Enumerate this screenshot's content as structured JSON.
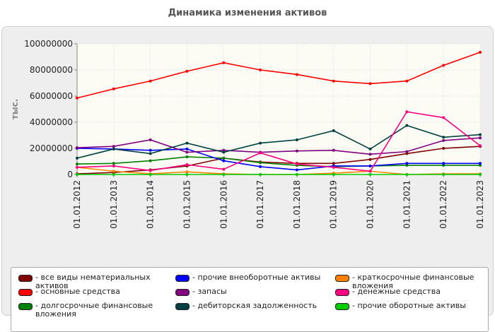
{
  "title": "Динамика изменения активов",
  "chart_data": {
    "type": "line",
    "ylabel": "тыс.",
    "ylim": [
      0,
      100000000
    ],
    "yticks": [
      "0",
      "20000000",
      "40000000",
      "60000000",
      "80000000",
      "100000000"
    ],
    "x": [
      "01.01.2012",
      "01.01.2013",
      "01.01.2014",
      "01.01.2015",
      "01.01.2016",
      "01.01.2017",
      "01.01.2018",
      "01.01.2019",
      "01.01.2020",
      "01.01.2021",
      "01.01.2022",
      "01.01.2023"
    ],
    "series": [
      {
        "name": "- все виды нематериальных активов",
        "color": "#800000",
        "values": [
          500000,
          1500000,
          3500000,
          6500000,
          12500000,
          9500000,
          8500000,
          8500000,
          11500000,
          16000000,
          20000000,
          21500000
        ]
      },
      {
        "name": "- основные средства",
        "color": "#ff0000",
        "values": [
          58500000,
          65500000,
          71500000,
          79000000,
          85500000,
          80000000,
          76500000,
          71500000,
          69500000,
          71500000,
          83500000,
          93500000
        ]
      },
      {
        "name": "- долгосрочные финансовые вложения",
        "color": "#008000",
        "values": [
          8000000,
          8500000,
          10500000,
          13500000,
          12500000,
          9000000,
          7000000,
          6000000,
          6500000,
          7000000,
          7000000,
          7000000
        ]
      },
      {
        "name": "- прочие внеоборотные активы",
        "color": "#0000ff",
        "values": [
          20000000,
          19500000,
          18500000,
          19500000,
          10500000,
          6000000,
          3500000,
          6500000,
          6500000,
          8500000,
          8500000,
          8500000
        ]
      },
      {
        "name": "- запасы",
        "color": "#800080",
        "values": [
          20500000,
          21500000,
          26500000,
          17000000,
          18500000,
          17000000,
          18000000,
          18500000,
          15500000,
          17500000,
          26000000,
          28000000
        ]
      },
      {
        "name": "- дебиторская задолженность",
        "color": "#004040",
        "values": [
          12500000,
          19500000,
          16000000,
          24000000,
          17000000,
          24000000,
          26500000,
          33500000,
          19500000,
          37500000,
          28500000,
          30500000
        ]
      },
      {
        "name": "- краткосрочные финансовые вложения",
        "color": "#ff8000",
        "values": [
          5500000,
          2500000,
          500000,
          2000000,
          500000,
          0,
          0,
          1000000,
          2500000,
          0,
          500000,
          500000
        ]
      },
      {
        "name": "- денежные средства",
        "color": "#ff0080",
        "values": [
          5500000,
          6500000,
          3000000,
          7500000,
          4000000,
          16500000,
          8000000,
          5500000,
          2500000,
          48000000,
          43500000,
          22000000
        ]
      },
      {
        "name": "- прочие оборотные активы",
        "color": "#00cc00",
        "values": [
          0,
          0,
          0,
          0,
          0,
          0,
          0,
          0,
          0,
          0,
          0,
          0
        ]
      }
    ]
  }
}
